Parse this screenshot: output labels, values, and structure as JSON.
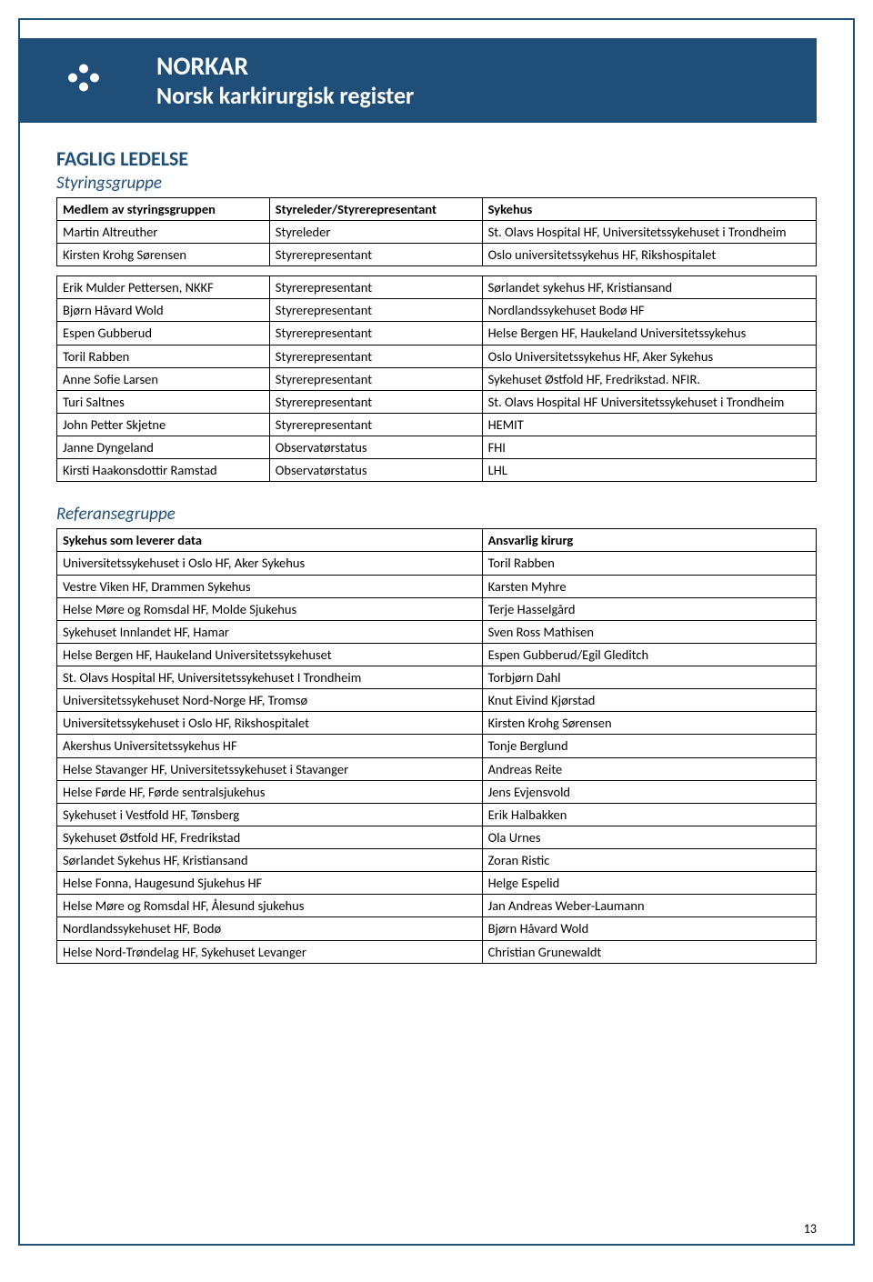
{
  "colors": {
    "brand": "#1f4e79",
    "white": "#ffffff",
    "border": "#000000"
  },
  "banner": {
    "title": "NORKAR",
    "subtitle": "Norsk karkirurgisk register"
  },
  "section_title": "FAGLIG LEDELSE",
  "steering": {
    "title": "Styringsgruppe",
    "headers": {
      "member": "Medlem av styringsgruppen",
      "role": "Styreleder/Styrerepresentant",
      "hospital": "Sykehus"
    },
    "group1": [
      {
        "name": "Martin Altreuther",
        "role": "Styreleder",
        "hospital": "St. Olavs Hospital HF, Universitetssykehuset i Trondheim"
      },
      {
        "name": "Kirsten Krohg Sørensen",
        "role": "Styrerepresentant",
        "hospital": "Oslo universitetssykehus HF, Rikshospitalet"
      }
    ],
    "group2": [
      {
        "name": "Erik Mulder Pettersen, NKKF",
        "role": "Styrerepresentant",
        "hospital": "Sørlandet sykehus HF, Kristiansand"
      },
      {
        "name": "Bjørn Håvard Wold",
        "role": "Styrerepresentant",
        "hospital": "Nordlandssykehuset Bodø HF"
      },
      {
        "name": "Espen Gubberud",
        "role": "Styrerepresentant",
        "hospital": "Helse Bergen HF, Haukeland Universitetssykehus"
      },
      {
        "name": "Toril Rabben",
        "role": "Styrerepresentant",
        "hospital": "Oslo Universitetssykehus HF, Aker Sykehus"
      },
      {
        "name": "Anne Sofie Larsen",
        "role": "Styrerepresentant",
        "hospital": "Sykehuset Østfold HF, Fredrikstad. NFIR."
      },
      {
        "name": "Turi Saltnes",
        "role": "Styrerepresentant",
        "hospital": "St. Olavs Hospital HF Universitetssykehuset i Trondheim"
      },
      {
        "name": "John Petter Skjetne",
        "role": "Styrerepresentant",
        "hospital": "HEMIT"
      },
      {
        "name": "Janne Dyngeland",
        "role": "Observatørstatus",
        "hospital": "FHI"
      },
      {
        "name": "Kirsti Haakonsdottir Ramstad",
        "role": "Observatørstatus",
        "hospital": "LHL"
      }
    ]
  },
  "reference": {
    "title": "Referansegruppe",
    "headers": {
      "hospital": "Sykehus som leverer data",
      "surgeon": "Ansvarlig kirurg"
    },
    "rows": [
      {
        "hospital": "Universitetssykehuset i Oslo HF, Aker Sykehus",
        "surgeon": "Toril Rabben"
      },
      {
        "hospital": "Vestre Viken HF, Drammen Sykehus",
        "surgeon": "Karsten Myhre"
      },
      {
        "hospital": "Helse Møre og Romsdal HF, Molde Sjukehus",
        "surgeon": "Terje Hasselgård"
      },
      {
        "hospital": "Sykehuset Innlandet HF, Hamar",
        "surgeon": "Sven Ross Mathisen"
      },
      {
        "hospital": "Helse Bergen HF, Haukeland Universitetssykehuset",
        "surgeon": "Espen Gubberud/Egil Gleditch"
      },
      {
        "hospital": "St. Olavs Hospital HF, Universitetssykehuset I Trondheim",
        "surgeon": "Torbjørn Dahl"
      },
      {
        "hospital": "Universitetssykehuset Nord-Norge HF, Tromsø",
        "surgeon": "Knut Eivind Kjørstad"
      },
      {
        "hospital": "Universitetssykehuset i Oslo HF, Rikshospitalet",
        "surgeon": "Kirsten Krohg Sørensen"
      },
      {
        "hospital": "Akershus Universitetssykehus HF",
        "surgeon": "Tonje Berglund"
      },
      {
        "hospital": "Helse Stavanger HF, Universitetssykehuset i Stavanger",
        "surgeon": "Andreas Reite"
      },
      {
        "hospital": "Helse Førde HF, Førde sentralsjukehus",
        "surgeon": "Jens Evjensvold"
      },
      {
        "hospital": "Sykehuset i Vestfold HF, Tønsberg",
        "surgeon": "Erik Halbakken"
      },
      {
        "hospital": "Sykehuset Østfold HF, Fredrikstad",
        "surgeon": "Ola Urnes"
      },
      {
        "hospital": "Sørlandet Sykehus HF, Kristiansand",
        "surgeon": "Zoran Ristic"
      },
      {
        "hospital": "Helse Fonna, Haugesund Sjukehus HF",
        "surgeon": "Helge Espelid"
      },
      {
        "hospital": "Helse Møre og Romsdal HF, Ålesund sjukehus",
        "surgeon": "Jan Andreas Weber-Laumann"
      },
      {
        "hospital": "Nordlandssykehuset HF, Bodø",
        "surgeon": "Bjørn Håvard Wold"
      },
      {
        "hospital": "Helse Nord-Trøndelag HF, Sykehuset Levanger",
        "surgeon": "Christian Grunewaldt"
      }
    ]
  },
  "page_number": "13"
}
